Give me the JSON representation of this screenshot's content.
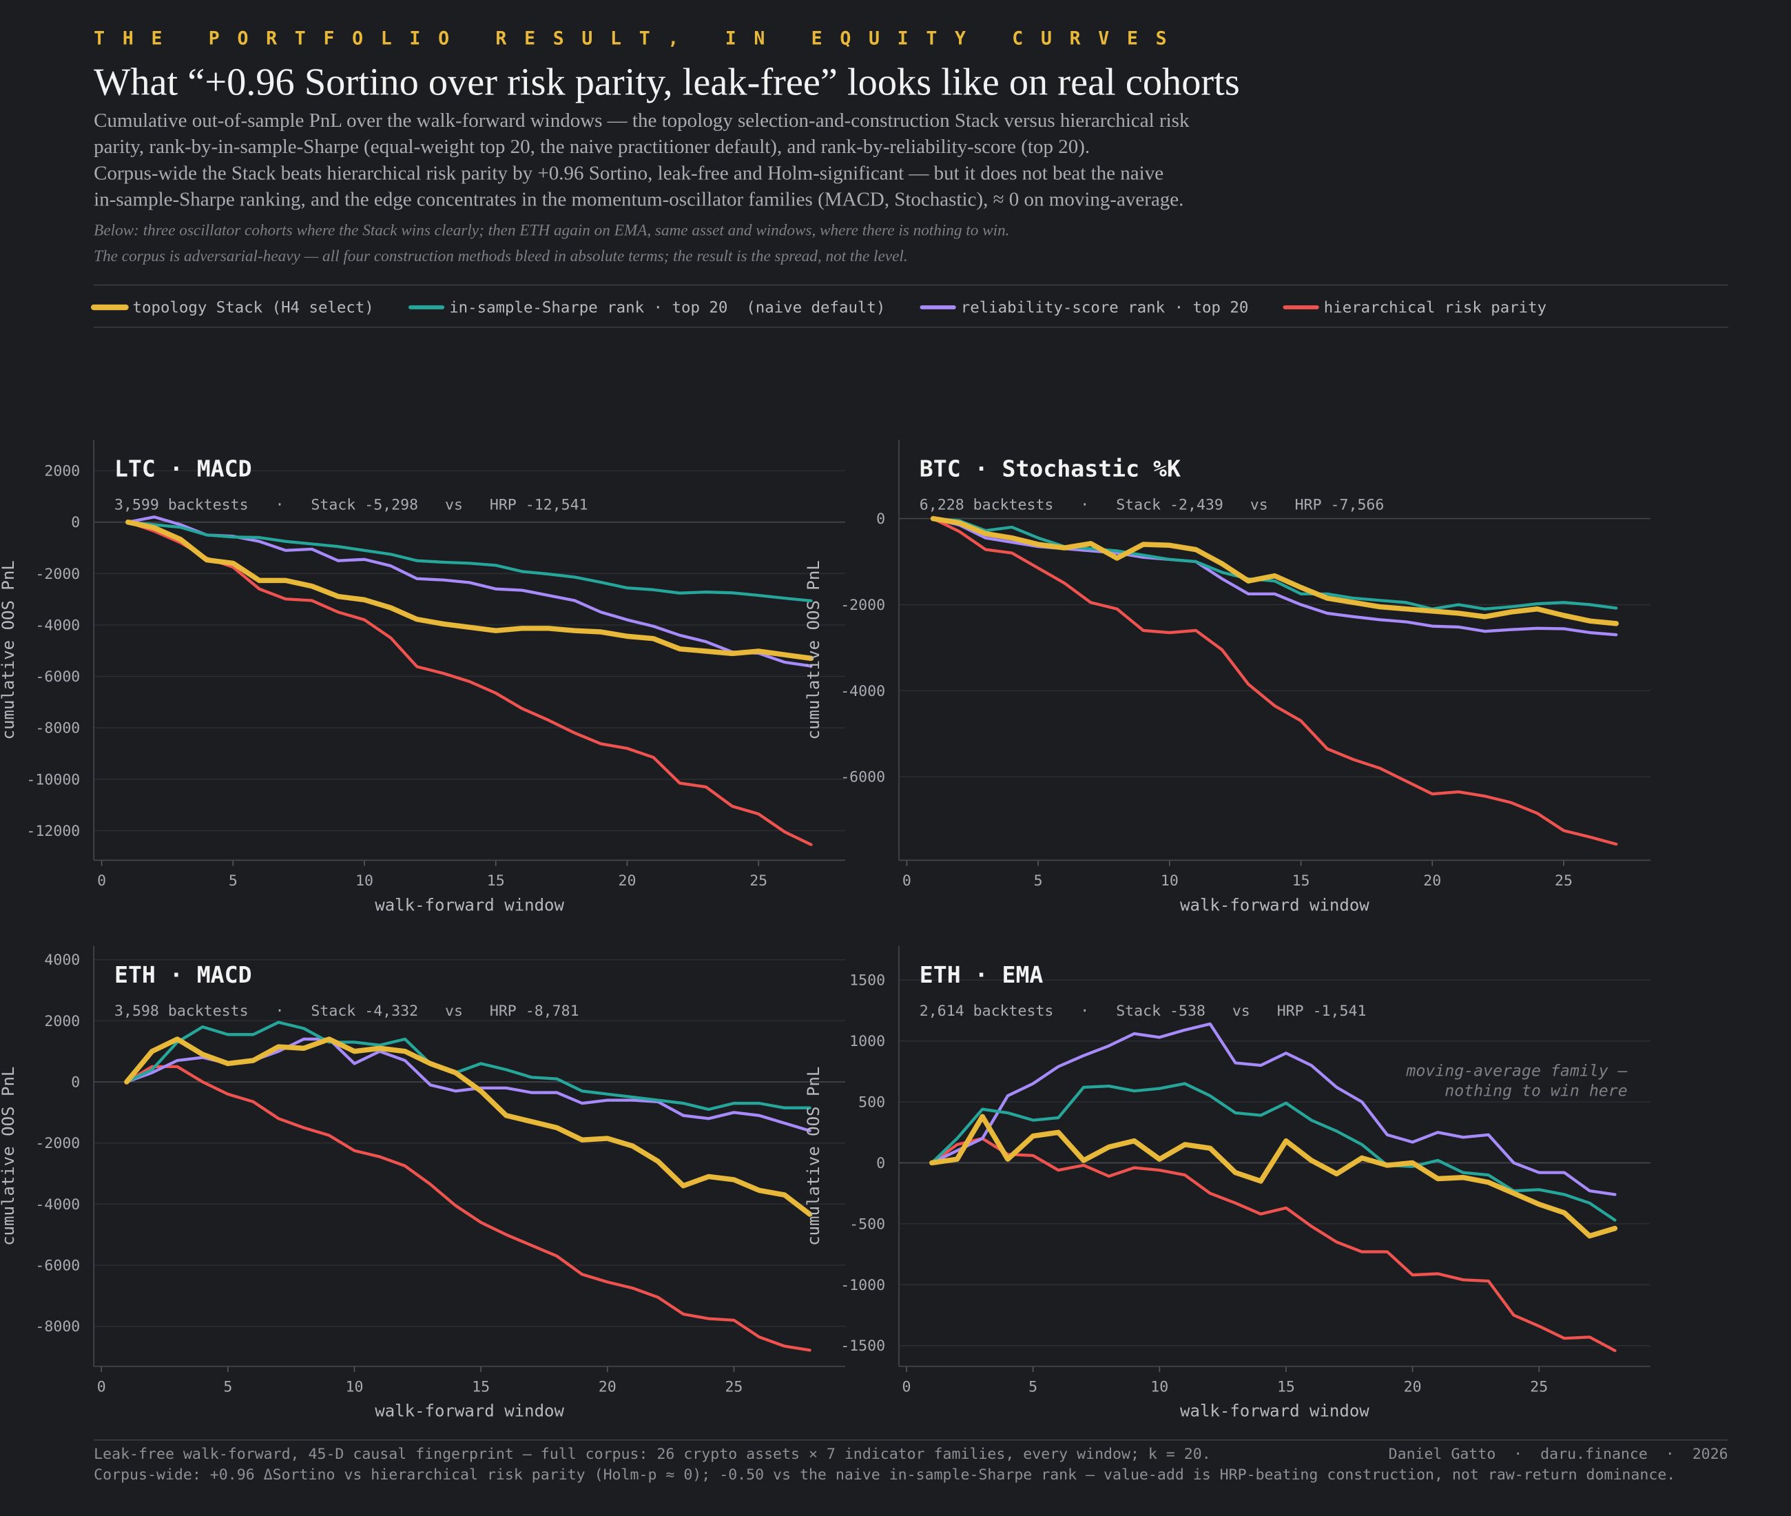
{
  "kicker": "THE PORTFOLIO RESULT, IN EQUITY CURVES",
  "title": "What “+0.96 Sortino over risk parity, leak-free” looks like on real cohorts",
  "lead": [
    "Cumulative out-of-sample PnL over the walk-forward windows — the topology selection-and-construction Stack versus hierarchical risk",
    "parity, rank-by-in-sample-Sharpe (equal-weight top 20, the naive practitioner default), and rank-by-reliability-score (top 20).",
    "Corpus-wide the Stack beats hierarchical risk parity by +0.96 Sortino, leak-free and Holm-significant — but it does not beat the naive",
    "in-sample-Sharpe ranking, and the edge concentrates in the momentum-oscillator families (MACD, Stochastic), ≈ 0 on moving-average."
  ],
  "note": [
    "Below: three oscillator cohorts where the Stack wins clearly; then ETH again on EMA, same asset and windows, where there is nothing to win.",
    "The corpus is adversarial-heavy — all four construction methods bleed in absolute terms; the result is the spread, not the level."
  ],
  "legend": [
    {
      "name": "topology Stack (H4 select)",
      "color": "#e8b83a"
    },
    {
      "name": "in-sample-Sharpe rank · top 20  (naive default)",
      "color": "#26a69a"
    },
    {
      "name": "reliability-score rank · top 20",
      "color": "#a78bfa"
    },
    {
      "name": "hierarchical risk parity",
      "color": "#ef5350"
    }
  ],
  "chart_data": [
    {
      "type": "line",
      "title": "LTC · MACD",
      "subtitle": "3,599 backtests   ·   Stack -5,298   vs   HRP -12,541",
      "x_label": "walk-forward window",
      "y_label": "cumulative OOS PnL",
      "x": [
        1,
        2,
        3,
        4,
        5,
        6,
        7,
        8,
        9,
        10,
        11,
        12,
        13,
        14,
        15,
        16,
        17,
        18,
        19,
        20,
        21,
        22,
        23,
        24,
        25,
        26,
        27
      ],
      "xlim": [
        -0.3,
        28.3
      ],
      "xticks": [
        0,
        5,
        10,
        15,
        20,
        25
      ],
      "ylim": [
        -13150,
        3200
      ],
      "yticks": [
        -12000,
        -10000,
        -8000,
        -6000,
        -4000,
        -2000,
        0,
        2000
      ],
      "grid": true,
      "series": [
        {
          "values": [
            0,
            -220,
            -670,
            -1470,
            -1600,
            -2270,
            -2270,
            -2490,
            -2890,
            -3020,
            -3330,
            -3780,
            -3960,
            -4090,
            -4220,
            -4130,
            -4130,
            -4220,
            -4270,
            -4440,
            -4530,
            -4930,
            -5020,
            -5110,
            -5020,
            -5160,
            -5298
          ]
        },
        {
          "values": [
            0,
            -100,
            -200,
            -500,
            -580,
            -600,
            -750,
            -850,
            -950,
            -1100,
            -1250,
            -1500,
            -1560,
            -1600,
            -1680,
            -1920,
            -2020,
            -2140,
            -2340,
            -2560,
            -2630,
            -2760,
            -2720,
            -2750,
            -2850,
            -2960,
            -3060
          ]
        },
        {
          "values": [
            0,
            200,
            -100,
            -500,
            -550,
            -750,
            -1100,
            -1050,
            -1500,
            -1450,
            -1700,
            -2200,
            -2250,
            -2350,
            -2600,
            -2650,
            -2850,
            -3050,
            -3500,
            -3800,
            -4050,
            -4400,
            -4650,
            -5050,
            -5100,
            -5450,
            -5600
          ]
        },
        {
          "values": [
            0,
            -350,
            -800,
            -1400,
            -1750,
            -2600,
            -2990,
            -3050,
            -3500,
            -3800,
            -4500,
            -5620,
            -5880,
            -6200,
            -6650,
            -7250,
            -7700,
            -8200,
            -8620,
            -8800,
            -9150,
            -10150,
            -10300,
            -11050,
            -11350,
            -12050,
            -12541
          ]
        }
      ]
    },
    {
      "type": "line",
      "title": "BTC · Stochastic %K",
      "subtitle": "6,228 backtests   ·   Stack -2,439   vs   HRP -7,566",
      "x_label": "walk-forward window",
      "y_label": "cumulative OOS PnL",
      "x": [
        1,
        2,
        3,
        4,
        5,
        6,
        7,
        8,
        9,
        10,
        11,
        12,
        13,
        14,
        15,
        16,
        17,
        18,
        19,
        20,
        21,
        22,
        23,
        24,
        25,
        26,
        27
      ],
      "xlim": [
        -0.3,
        28.3
      ],
      "xticks": [
        0,
        5,
        10,
        15,
        20,
        25
      ],
      "ylim": [
        -7940,
        1830
      ],
      "yticks": [
        -6000,
        -4000,
        -2000,
        0
      ],
      "grid": true,
      "series": [
        {
          "values": [
            0,
            -100,
            -350,
            -450,
            -600,
            -680,
            -580,
            -920,
            -600,
            -620,
            -720,
            -1050,
            -1450,
            -1330,
            -1600,
            -1850,
            -1950,
            -2050,
            -2100,
            -2150,
            -2200,
            -2280,
            -2170,
            -2100,
            -2250,
            -2380,
            -2439
          ]
        },
        {
          "values": [
            0,
            -50,
            -280,
            -200,
            -450,
            -650,
            -700,
            -750,
            -850,
            -950,
            -1000,
            -1250,
            -1400,
            -1450,
            -1750,
            -1750,
            -1850,
            -1900,
            -1950,
            -2100,
            -2000,
            -2100,
            -2050,
            -1980,
            -1950,
            -2000,
            -2080
          ]
        },
        {
          "values": [
            0,
            -150,
            -450,
            -550,
            -650,
            -700,
            -750,
            -800,
            -900,
            -950,
            -1000,
            -1400,
            -1750,
            -1750,
            -2000,
            -2200,
            -2280,
            -2350,
            -2400,
            -2500,
            -2520,
            -2620,
            -2580,
            -2550,
            -2560,
            -2650,
            -2700
          ]
        },
        {
          "values": [
            0,
            -300,
            -720,
            -800,
            -1150,
            -1500,
            -1950,
            -2100,
            -2600,
            -2650,
            -2600,
            -3050,
            -3850,
            -4350,
            -4700,
            -5350,
            -5600,
            -5800,
            -6100,
            -6400,
            -6350,
            -6450,
            -6600,
            -6850,
            -7250,
            -7400,
            -7566
          ]
        }
      ]
    },
    {
      "type": "line",
      "title": "ETH · MACD",
      "subtitle": "3,598 backtests   ·   Stack -4,332   vs   HRP -8,781",
      "x_label": "walk-forward window",
      "y_label": "cumulative OOS PnL",
      "x": [
        1,
        2,
        3,
        4,
        5,
        6,
        7,
        8,
        9,
        10,
        11,
        12,
        13,
        14,
        15,
        16,
        17,
        18,
        19,
        20,
        21,
        22,
        23,
        24,
        25,
        26,
        27,
        28
      ],
      "xlim": [
        -0.3,
        29.4
      ],
      "xticks": [
        0,
        5,
        10,
        15,
        20,
        25
      ],
      "ylim": [
        -9310,
        4450
      ],
      "yticks": [
        -8000,
        -6000,
        -4000,
        -2000,
        0,
        2000,
        4000
      ],
      "grid": true,
      "series": [
        {
          "values": [
            0,
            1000,
            1400,
            900,
            600,
            700,
            1150,
            1100,
            1400,
            1000,
            1100,
            1000,
            600,
            300,
            -300,
            -1100,
            -1300,
            -1500,
            -1900,
            -1850,
            -2100,
            -2600,
            -3400,
            -3100,
            -3200,
            -3550,
            -3700,
            -4332
          ]
        },
        {
          "values": [
            0,
            400,
            1300,
            1800,
            1550,
            1550,
            1950,
            1750,
            1300,
            1300,
            1200,
            1400,
            600,
            300,
            600,
            400,
            150,
            100,
            -300,
            -400,
            -500,
            -600,
            -700,
            -900,
            -700,
            -700,
            -850,
            -850
          ]
        },
        {
          "values": [
            0,
            300,
            700,
            800,
            600,
            700,
            1000,
            1400,
            1400,
            600,
            1000,
            700,
            -100,
            -300,
            -200,
            -200,
            -350,
            -350,
            -700,
            -600,
            -600,
            -650,
            -1100,
            -1200,
            -1000,
            -1100,
            -1350,
            -1600
          ]
        },
        {
          "values": [
            0,
            500,
            500,
            0,
            -400,
            -650,
            -1200,
            -1500,
            -1750,
            -2250,
            -2450,
            -2750,
            -3350,
            -4050,
            -4600,
            -5000,
            -5350,
            -5700,
            -6300,
            -6550,
            -6750,
            -7050,
            -7600,
            -7750,
            -7800,
            -8350,
            -8650,
            -8781
          ]
        }
      ]
    },
    {
      "type": "line",
      "title": "ETH · EMA",
      "subtitle": "2,614 backtests   ·   Stack -538   vs   HRP -1,541",
      "x_label": "walk-forward window",
      "y_label": "cumulative OOS PnL",
      "annotation": [
        "moving-average family —",
        "nothing to win here"
      ],
      "x": [
        1,
        2,
        3,
        4,
        5,
        6,
        7,
        8,
        9,
        10,
        11,
        12,
        13,
        14,
        15,
        16,
        17,
        18,
        19,
        20,
        21,
        22,
        23,
        24,
        25,
        26,
        27,
        28
      ],
      "xlim": [
        -0.3,
        29.4
      ],
      "xticks": [
        0,
        5,
        10,
        15,
        20,
        25
      ],
      "ylim": [
        -1670,
        1780
      ],
      "yticks": [
        -1500,
        -1000,
        -500,
        0,
        500,
        1000,
        1500
      ],
      "grid": true,
      "series": [
        {
          "values": [
            0,
            30,
            380,
            30,
            220,
            250,
            20,
            130,
            180,
            30,
            150,
            120,
            -80,
            -150,
            180,
            20,
            -90,
            40,
            -20,
            0,
            -130,
            -120,
            -160,
            -250,
            -340,
            -410,
            -600,
            -538
          ]
        },
        {
          "values": [
            0,
            200,
            440,
            410,
            350,
            370,
            620,
            630,
            590,
            610,
            650,
            550,
            410,
            390,
            490,
            350,
            260,
            150,
            -20,
            -30,
            20,
            -80,
            -100,
            -230,
            -220,
            -260,
            -330,
            -470
          ]
        },
        {
          "values": [
            0,
            100,
            200,
            550,
            650,
            790,
            880,
            960,
            1060,
            1030,
            1090,
            1140,
            820,
            800,
            900,
            800,
            620,
            500,
            230,
            170,
            250,
            210,
            230,
            0,
            -80,
            -80,
            -230,
            -260
          ]
        },
        {
          "values": [
            0,
            150,
            200,
            70,
            60,
            -60,
            -20,
            -110,
            -40,
            -60,
            -100,
            -250,
            -330,
            -420,
            -370,
            -520,
            -650,
            -730,
            -730,
            -920,
            -910,
            -960,
            -970,
            -1250,
            -1340,
            -1440,
            -1430,
            -1541
          ]
        }
      ]
    }
  ],
  "footer": {
    "left": [
      "Leak-free walk-forward, 45-D causal fingerprint — full corpus: 26 crypto assets × 7 indicator families, every window; k = 20.",
      "Corpus-wide: +0.96 ΔSortino vs hierarchical risk parity (Holm-p ≈ 0); -0.50 vs the naive in-sample-Sharpe rank — value-add is HRP-beating construction, not raw-return dominance."
    ],
    "right": "Daniel Gatto  ·  daru.finance  ·  2026"
  }
}
